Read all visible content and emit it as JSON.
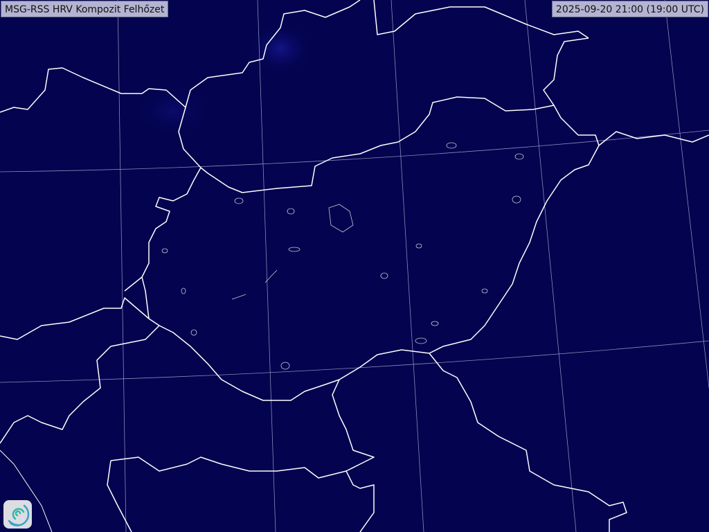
{
  "header": {
    "title": "MSG-RSS HRV Kompozit Felhőzet",
    "timestamp": "2025-09-20 21:00 (19:00 UTC)"
  },
  "map": {
    "background_color": "#03034f",
    "border_color": "#ffffff",
    "graticule_color": "#9a9ac0",
    "logo_icon": "swirl-logo-icon"
  }
}
